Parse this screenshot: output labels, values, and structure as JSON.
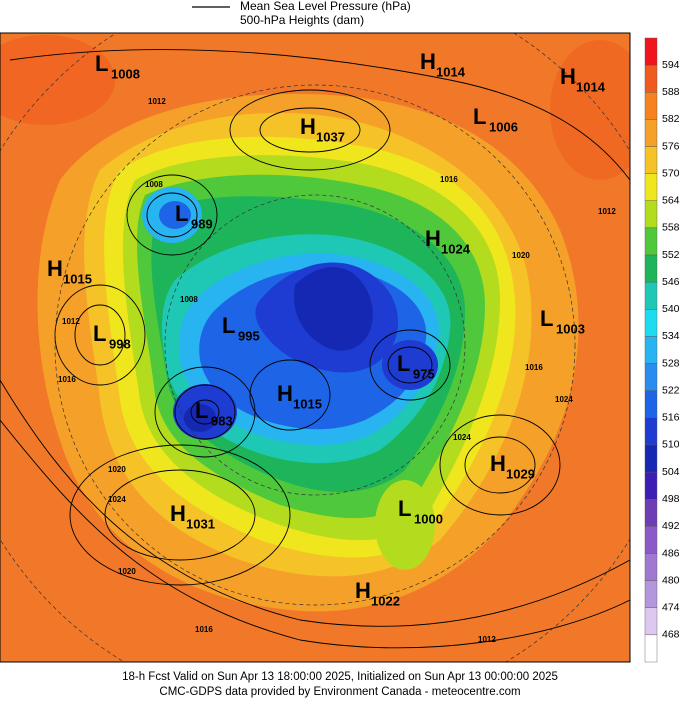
{
  "legend": {
    "lines": [
      "Mean Sea Level Pressure (hPa)",
      "500-hPa Heights (dam)"
    ]
  },
  "colorbar": {
    "labels": [
      "594",
      "588",
      "582",
      "576",
      "570",
      "564",
      "558",
      "552",
      "546",
      "540",
      "534",
      "528",
      "522",
      "516",
      "510",
      "504",
      "498",
      "492",
      "486",
      "480",
      "474",
      "468"
    ],
    "colors": [
      "#f0141e",
      "#f05a1e",
      "#f5821e",
      "#f5a028",
      "#f5c328",
      "#f0e61e",
      "#b4dc1e",
      "#50c83c",
      "#1eb45a",
      "#1ec8b4",
      "#1edcf0",
      "#28b4f0",
      "#288cf0",
      "#1e64e6",
      "#1e3cd2",
      "#1428b4",
      "#3c1eb4",
      "#6e3cb4",
      "#8c5ac8",
      "#a078d2",
      "#b496dc",
      "#dcc8f0"
    ]
  },
  "centers": [
    {
      "type": "L",
      "value": "1008"
    },
    {
      "type": "H",
      "value": "1014"
    },
    {
      "type": "H",
      "value": "1014"
    },
    {
      "type": "H",
      "value": "1037"
    },
    {
      "type": "L",
      "value": "1006"
    },
    {
      "type": "L",
      "value": "989"
    },
    {
      "type": "H",
      "value": "1024"
    },
    {
      "type": "H",
      "value": "1015"
    },
    {
      "type": "L",
      "value": "1003"
    },
    {
      "type": "L",
      "value": "998"
    },
    {
      "type": "L",
      "value": "995"
    },
    {
      "type": "L",
      "value": "975"
    },
    {
      "type": "H",
      "value": "1015"
    },
    {
      "type": "L",
      "value": "983"
    },
    {
      "type": "H",
      "value": "1029"
    },
    {
      "type": "H",
      "value": "1031"
    },
    {
      "type": "L",
      "value": "1000"
    },
    {
      "type": "H",
      "value": "1022"
    }
  ],
  "contour_labels": [
    "1012",
    "1008",
    "1012",
    "1016",
    "1008",
    "1020",
    "1016",
    "1020",
    "1024",
    "1024",
    "1020",
    "1016",
    "1012",
    "1024",
    "1016",
    "1012"
  ],
  "footer": [
    "18-h Fcst Valid on Sun Apr 13 18:00:00 2025, Initialized on Sun Apr 13 00:00:00 2025",
    "CMC-GDPS data provided by Environment Canada - meteocentre.com"
  ]
}
